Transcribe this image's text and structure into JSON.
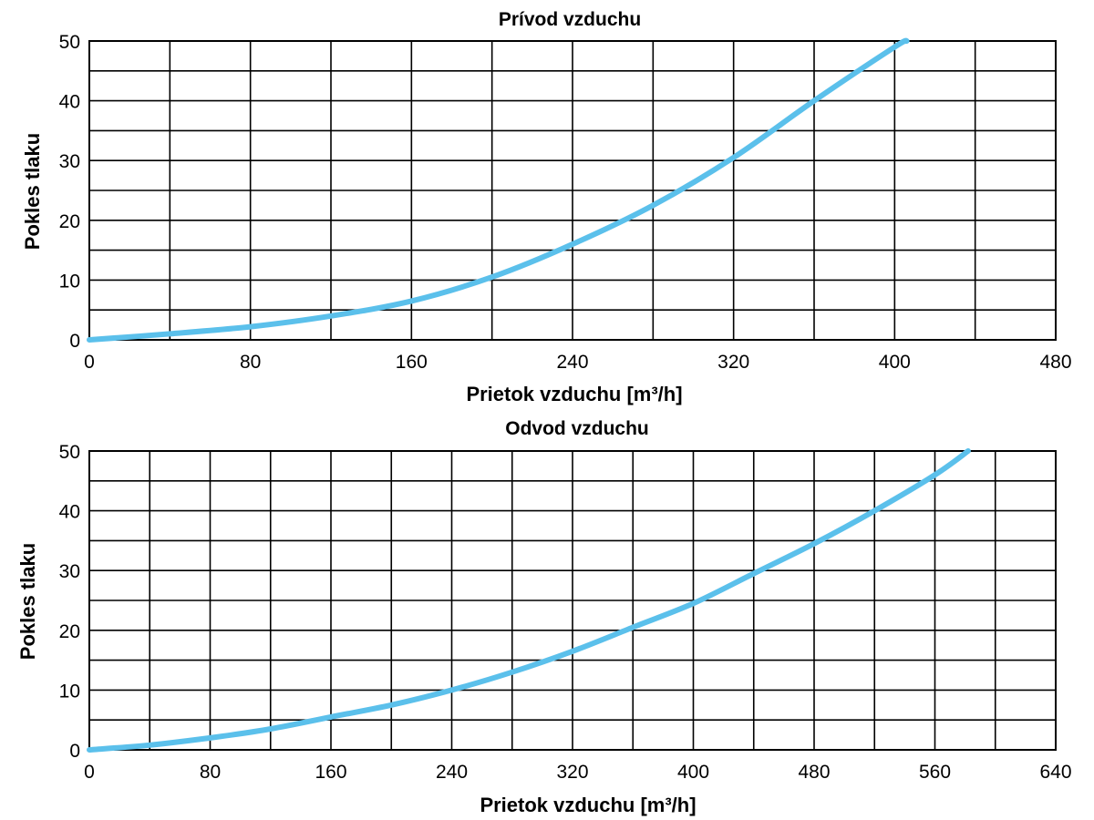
{
  "chart_data": [
    {
      "type": "line",
      "title": "Prívod vzduchu",
      "xlabel": "Prietok vzduchu [m³/h]",
      "ylabel": "Pokles tlaku",
      "xlim": [
        0,
        480
      ],
      "ylim": [
        0,
        50
      ],
      "x_ticks": [
        0,
        80,
        160,
        240,
        320,
        400,
        480
      ],
      "y_ticks": [
        0,
        10,
        20,
        30,
        40,
        50
      ],
      "x_minor_step": 40,
      "y_minor_step": 5,
      "grid": true,
      "line_color": "#5bc0eb",
      "series": [
        {
          "name": "Prívod vzduchu",
          "x": [
            0,
            40,
            80,
            120,
            160,
            200,
            240,
            280,
            320,
            360,
            400,
            406
          ],
          "y": [
            0,
            1,
            2.2,
            4,
            6.5,
            10.5,
            16,
            22.5,
            30.5,
            40,
            49,
            50
          ]
        }
      ]
    },
    {
      "type": "line",
      "title": "Odvod vzduchu",
      "xlabel": "Prietok vzduchu [m³/h]",
      "ylabel": "Pokles tlaku",
      "xlim": [
        0,
        640
      ],
      "ylim": [
        0,
        50
      ],
      "x_ticks": [
        0,
        80,
        160,
        240,
        320,
        400,
        480,
        560,
        640
      ],
      "y_ticks": [
        0,
        10,
        20,
        30,
        40,
        50
      ],
      "x_minor_step": 40,
      "y_minor_step": 5,
      "grid": true,
      "line_color": "#5bc0eb",
      "series": [
        {
          "name": "Odvod vzduchu",
          "x": [
            0,
            40,
            80,
            120,
            160,
            200,
            240,
            280,
            320,
            360,
            400,
            440,
            480,
            520,
            560,
            582
          ],
          "y": [
            0,
            0.8,
            2,
            3.5,
            5.5,
            7.5,
            10,
            13,
            16.5,
            20.5,
            24.5,
            29.5,
            34.5,
            40,
            46,
            50
          ]
        }
      ]
    }
  ]
}
